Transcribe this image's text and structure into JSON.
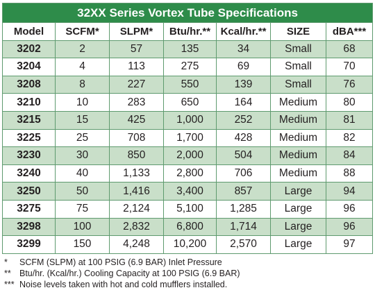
{
  "title": "32XX Series Vortex Tube Specifications",
  "headers": [
    "Model",
    "SCFM*",
    "SLPM*",
    "Btu/hr.**",
    "Kcal/hr.**",
    "SIZE",
    "dBA***"
  ],
  "rows": [
    {
      "model": "3202",
      "scfm": "2",
      "slpm": "57",
      "btu": "135",
      "kcal": "34",
      "size": "Small",
      "dba": "68"
    },
    {
      "model": "3204",
      "scfm": "4",
      "slpm": "113",
      "btu": "275",
      "kcal": "69",
      "size": "Small",
      "dba": "70"
    },
    {
      "model": "3208",
      "scfm": "8",
      "slpm": "227",
      "btu": "550",
      "kcal": "139",
      "size": "Small",
      "dba": "76"
    },
    {
      "model": "3210",
      "scfm": "10",
      "slpm": "283",
      "btu": "650",
      "kcal": "164",
      "size": "Medium",
      "dba": "80"
    },
    {
      "model": "3215",
      "scfm": "15",
      "slpm": "425",
      "btu": "1,000",
      "kcal": "252",
      "size": "Medium",
      "dba": "81"
    },
    {
      "model": "3225",
      "scfm": "25",
      "slpm": "708",
      "btu": "1,700",
      "kcal": "428",
      "size": "Medium",
      "dba": "82"
    },
    {
      "model": "3230",
      "scfm": "30",
      "slpm": "850",
      "btu": "2,000",
      "kcal": "504",
      "size": "Medium",
      "dba": "84"
    },
    {
      "model": "3240",
      "scfm": "40",
      "slpm": "1,133",
      "btu": "2,800",
      "kcal": "706",
      "size": "Medium",
      "dba": "88"
    },
    {
      "model": "3250",
      "scfm": "50",
      "slpm": "1,416",
      "btu": "3,400",
      "kcal": "857",
      "size": "Large",
      "dba": "94"
    },
    {
      "model": "3275",
      "scfm": "75",
      "slpm": "2,124",
      "btu": "5,100",
      "kcal": "1,285",
      "size": "Large",
      "dba": "96"
    },
    {
      "model": "3298",
      "scfm": "100",
      "slpm": "2,832",
      "btu": "6,800",
      "kcal": "1,714",
      "size": "Large",
      "dba": "96"
    },
    {
      "model": "3299",
      "scfm": "150",
      "slpm": "4,248",
      "btu": "10,200",
      "kcal": "2,570",
      "size": "Large",
      "dba": "97"
    }
  ],
  "footnotes": [
    {
      "mark": "*",
      "text": "SCFM (SLPM) at 100 PSIG (6.9 BAR) Inlet Pressure"
    },
    {
      "mark": "**",
      "text": "Btu/hr. (Kcal/hr.) Cooling Capacity at 100 PSIG (6.9 BAR)"
    },
    {
      "mark": "***",
      "text": "Noise levels taken with hot and cold mufflers installed."
    }
  ],
  "colors": {
    "title_bg": "#2e8c4a",
    "shaded_row": "#c9dfc9",
    "border": "#5e9a6e"
  }
}
